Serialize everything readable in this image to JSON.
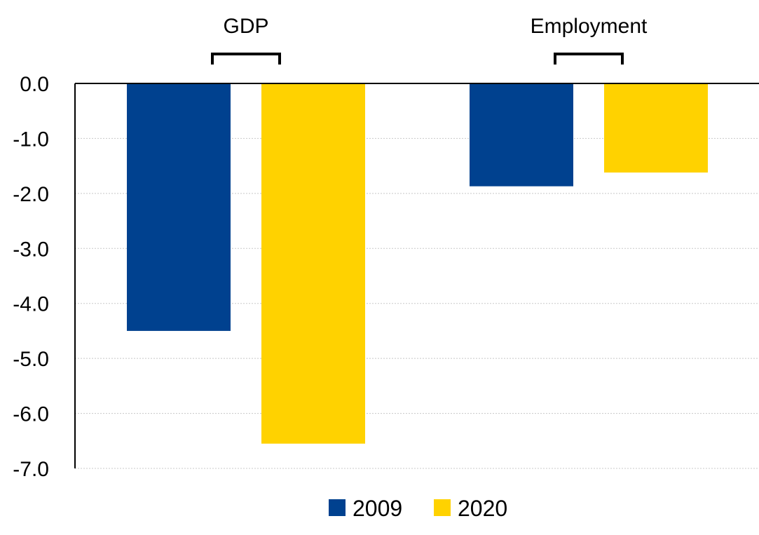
{
  "chart_data": {
    "type": "bar",
    "categories": [
      "GDP",
      "Employment"
    ],
    "series": [
      {
        "name": "2009",
        "color": "#00418F",
        "values": [
          -4.5,
          -1.87
        ]
      },
      {
        "name": "2020",
        "color": "#FFD200",
        "values": [
          -6.55,
          -1.62
        ]
      }
    ],
    "ylim": [
      -7.0,
      0.0
    ],
    "yticks": [
      "0.0",
      "-1.0",
      "-2.0",
      "-3.0",
      "-4.0",
      "-5.0",
      "-6.0",
      "-7.0"
    ],
    "ytick_values": [
      0,
      -1,
      -2,
      -3,
      -4,
      -5,
      -6,
      -7
    ],
    "category_label_position": "top",
    "grid": true,
    "legend": "bottom-center"
  }
}
